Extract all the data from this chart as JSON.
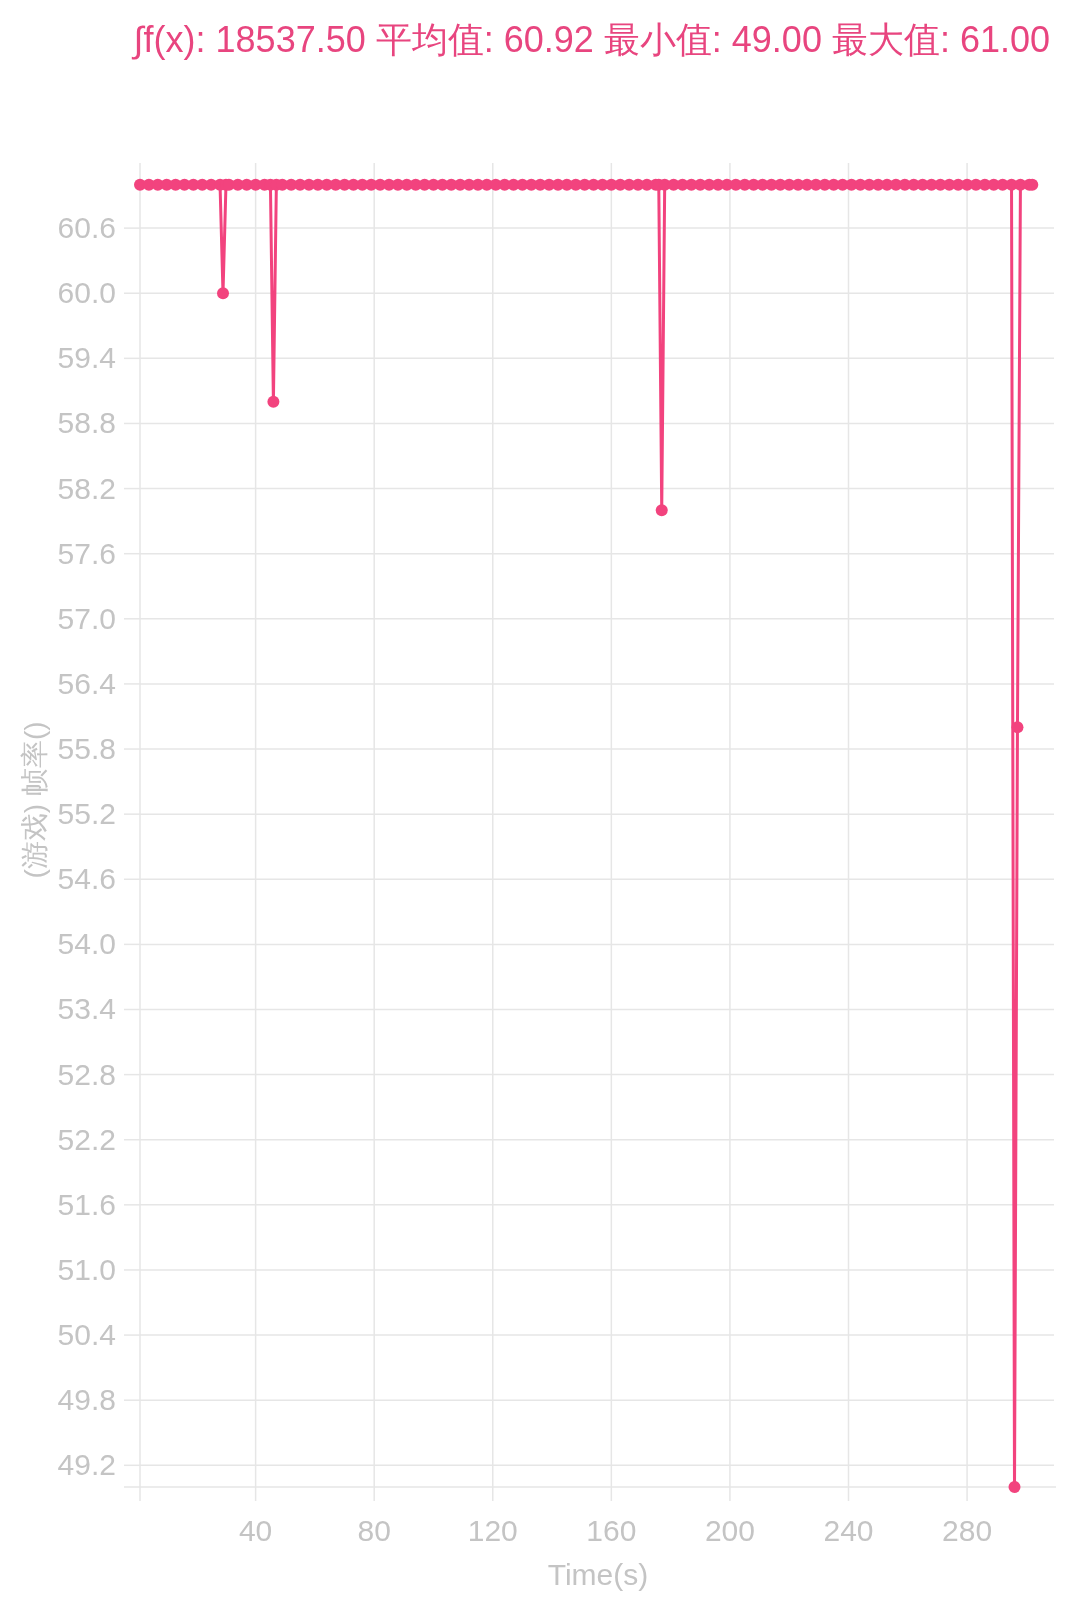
{
  "chart_data": {
    "type": "line",
    "title": "∫f(x): 18537.50 平均值: 60.92 最小值: 49.00 最大值: 61.00",
    "xlabel": "Time(s)",
    "ylabel": "(游戏) 帧率()",
    "xlim": [
      1,
      310
    ],
    "ylim": [
      49,
      61.2
    ],
    "xticks": [
      40,
      80,
      120,
      160,
      200,
      240,
      280
    ],
    "yticks": [
      {
        "value": 49.2,
        "label": "49.2"
      },
      49.8,
      50.4,
      {
        "value": 51,
        "label": "51.0"
      },
      51.6,
      52.2,
      52.8,
      53.4,
      {
        "value": 54,
        "label": "54.0"
      },
      54.6,
      55.2,
      55.8,
      56.4,
      {
        "value": 57,
        "label": "57.0"
      },
      57.6,
      58.2,
      58.8,
      59.4,
      {
        "value": 60,
        "label": "60.0"
      },
      60.6
    ],
    "grid": true,
    "marker": "circle",
    "line_style": "solid",
    "color": "#f2437e",
    "x": [
      1,
      4,
      7,
      10,
      13,
      16,
      19,
      22,
      25,
      28,
      29,
      30,
      31,
      34,
      37,
      40,
      43,
      45,
      46,
      47,
      49,
      52,
      55,
      58,
      61,
      64,
      67,
      70,
      73,
      76,
      79,
      82,
      85,
      88,
      91,
      94,
      97,
      100,
      103,
      106,
      109,
      112,
      115,
      118,
      121,
      124,
      127,
      130,
      133,
      136,
      139,
      142,
      145,
      148,
      151,
      154,
      157,
      160,
      163,
      166,
      169,
      172,
      175,
      176,
      177,
      178,
      181,
      184,
      187,
      190,
      193,
      196,
      199,
      202,
      205,
      208,
      211,
      214,
      217,
      220,
      223,
      226,
      229,
      232,
      235,
      238,
      241,
      244,
      247,
      250,
      253,
      256,
      259,
      262,
      265,
      268,
      271,
      274,
      277,
      280,
      283,
      286,
      289,
      292,
      295,
      296,
      297,
      298,
      301,
      302
    ],
    "values": [
      61,
      61,
      61,
      61,
      61,
      61,
      61,
      61,
      61,
      61,
      60,
      61,
      61,
      61,
      61,
      61,
      61,
      61,
      59,
      61,
      61,
      61,
      61,
      61,
      61,
      61,
      61,
      61,
      61,
      61,
      61,
      61,
      61,
      61,
      61,
      61,
      61,
      61,
      61,
      61,
      61,
      61,
      61,
      61,
      61,
      61,
      61,
      61,
      61,
      61,
      61,
      61,
      61,
      61,
      61,
      61,
      61,
      61,
      61,
      61,
      61,
      61,
      61,
      61,
      58,
      61,
      61,
      61,
      61,
      61,
      61,
      61,
      61,
      61,
      61,
      61,
      61,
      61,
      61,
      61,
      61,
      61,
      61,
      61,
      61,
      61,
      61,
      61,
      61,
      61,
      61,
      61,
      61,
      61,
      61,
      61,
      61,
      61,
      61,
      61,
      61,
      61,
      61,
      61,
      61,
      49,
      56,
      61,
      61,
      61
    ]
  }
}
